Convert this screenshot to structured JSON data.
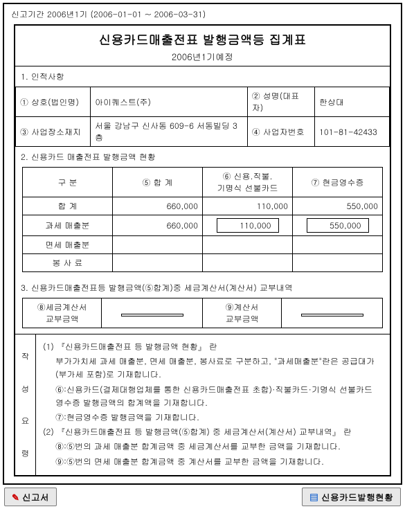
{
  "period_bar": "신고기간 2006년1기 (2006-01-01 ~ 2006-03-31)",
  "title": {
    "main": "신용카드매출전표 발행금액등 집계표",
    "sub": "2006년1기예정"
  },
  "sec1": {
    "label": "1. 인적사항",
    "cells": {
      "c1": "① 상호(법인명)",
      "v1": "아이퀘스트(주)",
      "c2": "② 성명(대표자)",
      "v2": "한상대",
      "c3": "③ 사업장소재지",
      "v3": "서울 강남구 신사동 609-6 서동빌딩 3층",
      "c4": "④ 사업자번호",
      "v4": "101-81-42433"
    }
  },
  "sec2": {
    "label": "2. 신용카드 매출전표 발행금액 현황",
    "head": {
      "h1": "구    분",
      "h2": "⑤ 합  계",
      "h3": "⑥ 신용.직불.\n기명식 선불카드",
      "h4": "⑦ 현금영수증"
    },
    "rows": [
      {
        "r": "합     계",
        "a": "660,000",
        "b": "110,000",
        "c": "550,000",
        "boxed": false
      },
      {
        "r": "과세 매출분",
        "a": "660,000",
        "b": "110,000",
        "c": "550,000",
        "boxed": true
      },
      {
        "r": "면세 매출분",
        "a": "",
        "b": "",
        "c": "",
        "boxed": false
      },
      {
        "r": "봉  사  료",
        "a": "",
        "b": "",
        "c": "",
        "boxed": false
      }
    ]
  },
  "sec3": {
    "label": "3. 신용카드매출전표등 발행금액(⑤합계)중 세금계산서(계산서) 교부내역",
    "c1": "⑧세금계산서\n교부금액",
    "v1": "",
    "c2": "⑨계산서\n교부금액",
    "v2": ""
  },
  "notes": {
    "side": [
      "작",
      "성",
      "요",
      "령"
    ],
    "lines": [
      "(1) 『신용카드매출전표 등 발행금액 현황』 란",
      "부가가치세 과세 매출분, 면세 매출분, 봉사료로 구분하고, \"과세매출분\"란은 공급대가(부가세 포함)로 기재합니다.",
      "⑥:신용카드(결제대행업체를 통한 신용카드매출전표 초합)·직불카드·기명식 선불카드 영수증 발행금액의 합계액을 기재합니다.",
      "⑦:현금영수증 발행금액을 기재합니다.",
      "(2) 『신용카드매출전표 등 발행금액(⑤합계) 중 세금계산서(계산서) 교부내역』 란",
      "⑧:⑤번의 과세 매출분 합계금액 중 세금계산서를 교부한 금액을 기재합니다.",
      "⑨:⑤번의 면세 매출분 합계금액 중 계산서를 교부한 금액을 기재합니다."
    ],
    "indents": [
      0,
      1,
      1,
      1,
      0,
      1,
      1
    ]
  },
  "footer": {
    "left": "신고서",
    "right": "신용카드발행현황"
  },
  "colors": {
    "btn_bg": "#e8e8e8",
    "btn_border": "#7a7a7a",
    "icon_left": "#c00000",
    "icon_right": "#0055cc"
  }
}
